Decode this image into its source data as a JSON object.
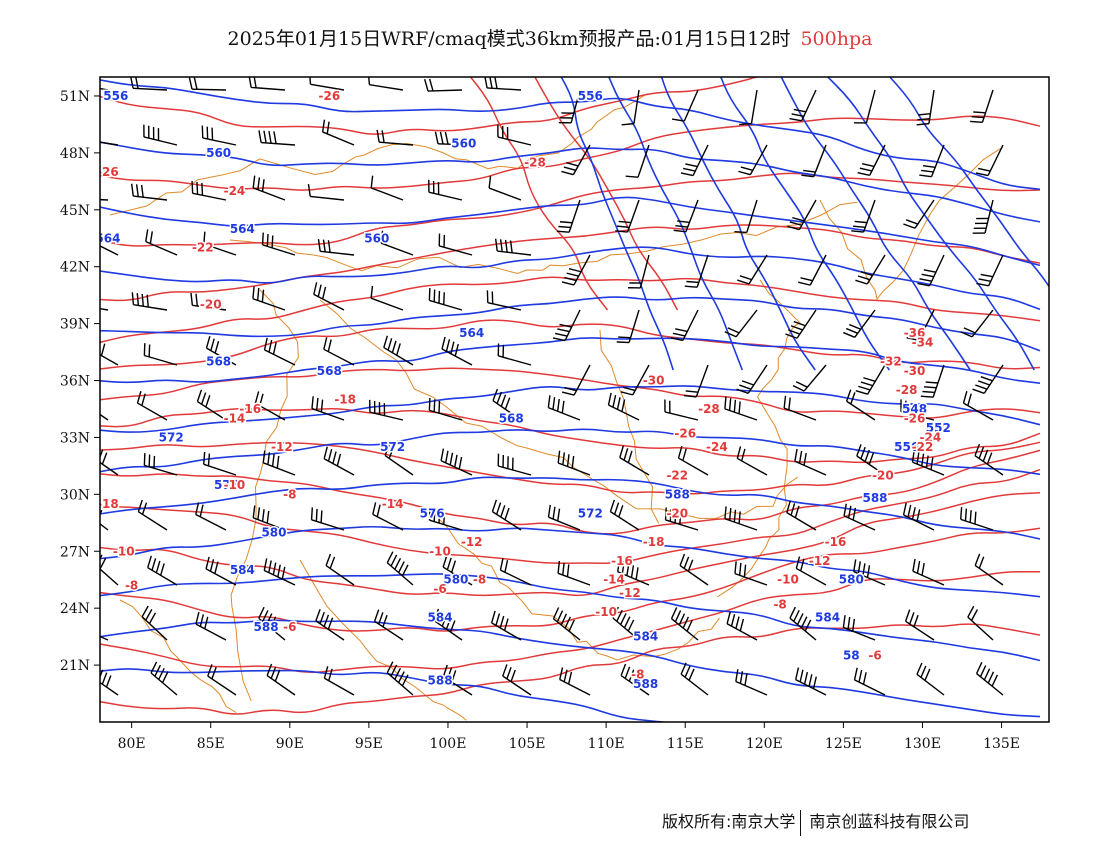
{
  "title": {
    "main": "2025年01月15日WRF/cmaq模式36km预报产品:01月15日12时",
    "level": "500hpa"
  },
  "colors": {
    "height": "#1e3ae0",
    "temperature": "#e23a3a",
    "border": "#e08a2a",
    "barb": "#000000"
  },
  "axes": {
    "lon_range": [
      78,
      138
    ],
    "lat_range": [
      18,
      52
    ],
    "x_ticks": [
      "80E",
      "85E",
      "90E",
      "95E",
      "100E",
      "105E",
      "110E",
      "115E",
      "120E",
      "125E",
      "130E",
      "135E"
    ],
    "x_tick_values": [
      80,
      85,
      90,
      95,
      100,
      105,
      110,
      115,
      120,
      125,
      130,
      135
    ],
    "y_ticks": [
      "51N",
      "48N",
      "45N",
      "42N",
      "39N",
      "36N",
      "33N",
      "30N",
      "27N",
      "24N",
      "21N"
    ],
    "y_tick_values": [
      51,
      48,
      45,
      42,
      39,
      36,
      33,
      30,
      27,
      24,
      21
    ]
  },
  "height_labels": [
    {
      "text": "556",
      "lon": 79,
      "lat": 51
    },
    {
      "text": "556",
      "lon": 109,
      "lat": 51
    },
    {
      "text": "560",
      "lon": 85.5,
      "lat": 48
    },
    {
      "text": "560",
      "lon": 101,
      "lat": 48.5
    },
    {
      "text": "564",
      "lon": 87,
      "lat": 44
    },
    {
      "text": "564",
      "lon": 78.5,
      "lat": 43.5
    },
    {
      "text": "560",
      "lon": 95.5,
      "lat": 43.5
    },
    {
      "text": "564",
      "lon": 101.5,
      "lat": 38.5
    },
    {
      "text": "568",
      "lon": 85.5,
      "lat": 37
    },
    {
      "text": "568",
      "lon": 92.5,
      "lat": 36.5
    },
    {
      "text": "568",
      "lon": 104,
      "lat": 34
    },
    {
      "text": "572",
      "lon": 82.5,
      "lat": 33
    },
    {
      "text": "572",
      "lon": 96.5,
      "lat": 32.5
    },
    {
      "text": "576",
      "lon": 86,
      "lat": 30.5
    },
    {
      "text": "576",
      "lon": 99,
      "lat": 29
    },
    {
      "text": "572",
      "lon": 109,
      "lat": 29
    },
    {
      "text": "580",
      "lon": 89,
      "lat": 28
    },
    {
      "text": "588",
      "lon": 114.5,
      "lat": 30
    },
    {
      "text": "584",
      "lon": 87,
      "lat": 26
    },
    {
      "text": "580",
      "lon": 100.5,
      "lat": 25.5
    },
    {
      "text": "584",
      "lon": 99.5,
      "lat": 23.5
    },
    {
      "text": "584",
      "lon": 112.5,
      "lat": 22.5
    },
    {
      "text": "588",
      "lon": 88.5,
      "lat": 23
    },
    {
      "text": "588",
      "lon": 99.5,
      "lat": 20.2
    },
    {
      "text": "588",
      "lon": 112.5,
      "lat": 20
    },
    {
      "text": "588",
      "lon": 127,
      "lat": 29.8
    },
    {
      "text": "584",
      "lon": 124,
      "lat": 23.5
    },
    {
      "text": "580",
      "lon": 125.5,
      "lat": 25.5
    },
    {
      "text": "548",
      "lon": 129.5,
      "lat": 34.5
    },
    {
      "text": "552",
      "lon": 131,
      "lat": 33.5
    },
    {
      "text": "556",
      "lon": 129,
      "lat": 32.5
    },
    {
      "text": "58",
      "lon": 125.5,
      "lat": 21.5
    }
  ],
  "temp_labels": [
    {
      "text": "-26",
      "lon": 92.5,
      "lat": 51
    },
    {
      "text": "-26",
      "lon": 78.5,
      "lat": 47
    },
    {
      "text": "-28",
      "lon": 105.5,
      "lat": 47.5
    },
    {
      "text": "-24",
      "lon": 86.5,
      "lat": 46
    },
    {
      "text": "-22",
      "lon": 84.5,
      "lat": 43
    },
    {
      "text": "-20",
      "lon": 85,
      "lat": 40
    },
    {
      "text": "-18",
      "lon": 93.5,
      "lat": 35
    },
    {
      "text": "-16",
      "lon": 87.5,
      "lat": 34.5
    },
    {
      "text": "-14",
      "lon": 86.5,
      "lat": 34
    },
    {
      "text": "-12",
      "lon": 89.5,
      "lat": 32.5
    },
    {
      "text": "-10",
      "lon": 86.5,
      "lat": 30.5
    },
    {
      "text": "-8",
      "lon": 90,
      "lat": 30
    },
    {
      "text": "-18",
      "lon": 78.5,
      "lat": 29.5
    },
    {
      "text": "-14",
      "lon": 96.5,
      "lat": 29.5
    },
    {
      "text": "-10",
      "lon": 79.5,
      "lat": 27
    },
    {
      "text": "-8",
      "lon": 80,
      "lat": 25.2
    },
    {
      "text": "-6",
      "lon": 90,
      "lat": 23
    },
    {
      "text": "-12",
      "lon": 101.5,
      "lat": 27.5
    },
    {
      "text": "-10",
      "lon": 99.5,
      "lat": 27
    },
    {
      "text": "-6",
      "lon": 99.5,
      "lat": 25
    },
    {
      "text": "-8",
      "lon": 102,
      "lat": 25.5
    },
    {
      "text": "-30",
      "lon": 113,
      "lat": 36
    },
    {
      "text": "-28",
      "lon": 116.5,
      "lat": 34.5
    },
    {
      "text": "-26",
      "lon": 115,
      "lat": 33.2
    },
    {
      "text": "-24",
      "lon": 117,
      "lat": 32.5
    },
    {
      "text": "-22",
      "lon": 114.5,
      "lat": 31
    },
    {
      "text": "-20",
      "lon": 114.5,
      "lat": 29
    },
    {
      "text": "-18",
      "lon": 113,
      "lat": 27.5
    },
    {
      "text": "-16",
      "lon": 111,
      "lat": 26.5
    },
    {
      "text": "-14",
      "lon": 110.5,
      "lat": 25.5
    },
    {
      "text": "-12",
      "lon": 111.5,
      "lat": 24.8
    },
    {
      "text": "-10",
      "lon": 110,
      "lat": 23.8
    },
    {
      "text": "-8",
      "lon": 112,
      "lat": 20.5
    },
    {
      "text": "-36",
      "lon": 129.5,
      "lat": 38.5
    },
    {
      "text": "-34",
      "lon": 130,
      "lat": 38
    },
    {
      "text": "-32",
      "lon": 128,
      "lat": 37
    },
    {
      "text": "-30",
      "lon": 129.5,
      "lat": 36.5
    },
    {
      "text": "-28",
      "lon": 129,
      "lat": 35.5
    },
    {
      "text": "-26",
      "lon": 129.5,
      "lat": 34
    },
    {
      "text": "-24",
      "lon": 130.5,
      "lat": 33
    },
    {
      "text": "-22",
      "lon": 130,
      "lat": 32.5
    },
    {
      "text": "-20",
      "lon": 127.5,
      "lat": 31
    },
    {
      "text": "-16",
      "lon": 124.5,
      "lat": 27.5
    },
    {
      "text": "-12",
      "lon": 123.5,
      "lat": 26.5
    },
    {
      "text": "-10",
      "lon": 121.5,
      "lat": 25.5
    },
    {
      "text": "-8",
      "lon": 121,
      "lat": 24.2
    },
    {
      "text": "-6",
      "lon": 127,
      "lat": 21.5
    }
  ],
  "footer": {
    "left": "版权所有:南京大学",
    "right": "南京创蓝科技有限公司"
  }
}
